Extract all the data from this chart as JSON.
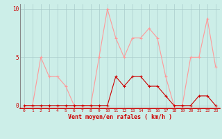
{
  "x": [
    0,
    1,
    2,
    3,
    4,
    5,
    6,
    7,
    8,
    9,
    10,
    11,
    12,
    13,
    14,
    15,
    16,
    17,
    18,
    19,
    20,
    21,
    22,
    23
  ],
  "rafales": [
    0,
    0,
    5,
    3,
    3,
    2,
    0,
    0,
    0,
    5,
    10,
    7,
    5,
    7,
    7,
    8,
    7,
    3,
    0,
    0,
    5,
    5,
    9,
    4
  ],
  "moyen": [
    0,
    0,
    0,
    0,
    0,
    0,
    0,
    0,
    0,
    0,
    0,
    3,
    2,
    3,
    3,
    2,
    2,
    1,
    0,
    0,
    0,
    1,
    1,
    0
  ],
  "bg_color": "#cceee8",
  "grid_color": "#aacccc",
  "rafales_color": "#ff9999",
  "moyen_color": "#cc0000",
  "xlabel": "Vent moyen/en rafales ( km/h )",
  "yticks": [
    0,
    5,
    10
  ],
  "xticks": [
    0,
    1,
    2,
    3,
    4,
    5,
    6,
    7,
    8,
    9,
    10,
    11,
    12,
    13,
    14,
    15,
    16,
    17,
    18,
    19,
    20,
    21,
    22,
    23
  ],
  "ylim": [
    -0.3,
    10.5
  ],
  "xlim": [
    -0.5,
    23.5
  ]
}
